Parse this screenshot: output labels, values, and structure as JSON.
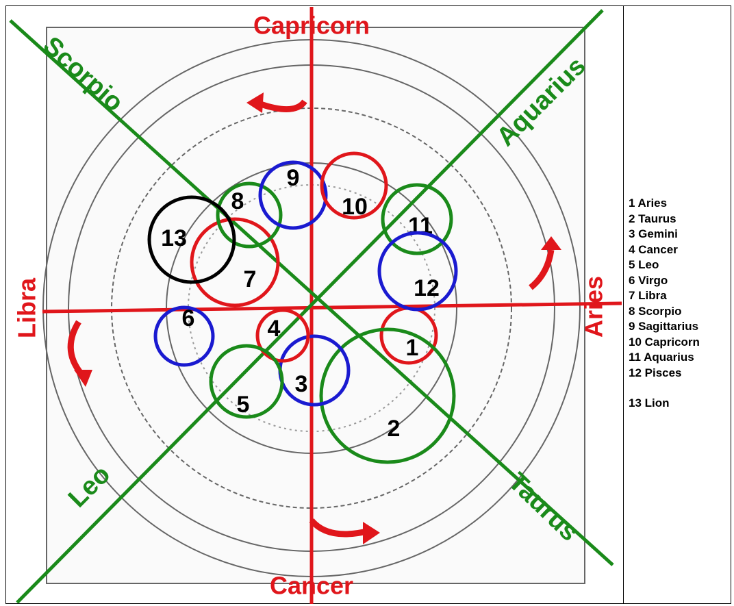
{
  "diagram": {
    "axis_labels": {
      "top": "Capricorn",
      "bottom": "Cancer",
      "left": "Libra",
      "right": "Aries"
    },
    "diagonal_labels": {
      "top_left": "Scorpio",
      "top_right": "Aquarius",
      "bottom_left": "Leo",
      "bottom_right": "Taurus"
    },
    "circles": [
      "1",
      "2",
      "3",
      "4",
      "5",
      "6",
      "7",
      "8",
      "9",
      "10",
      "11",
      "12",
      "13"
    ]
  },
  "legend": {
    "items": [
      "1 Aries",
      "2 Taurus",
      "3 Gemini",
      "4 Cancer",
      "5 Leo",
      "6 Virgo",
      "7 Libra",
      "8 Scorpio",
      "9 Sagittarius",
      "10 Capricorn",
      "11 Aquarius",
      "12 Pisces"
    ],
    "extra": "13 Lion"
  }
}
